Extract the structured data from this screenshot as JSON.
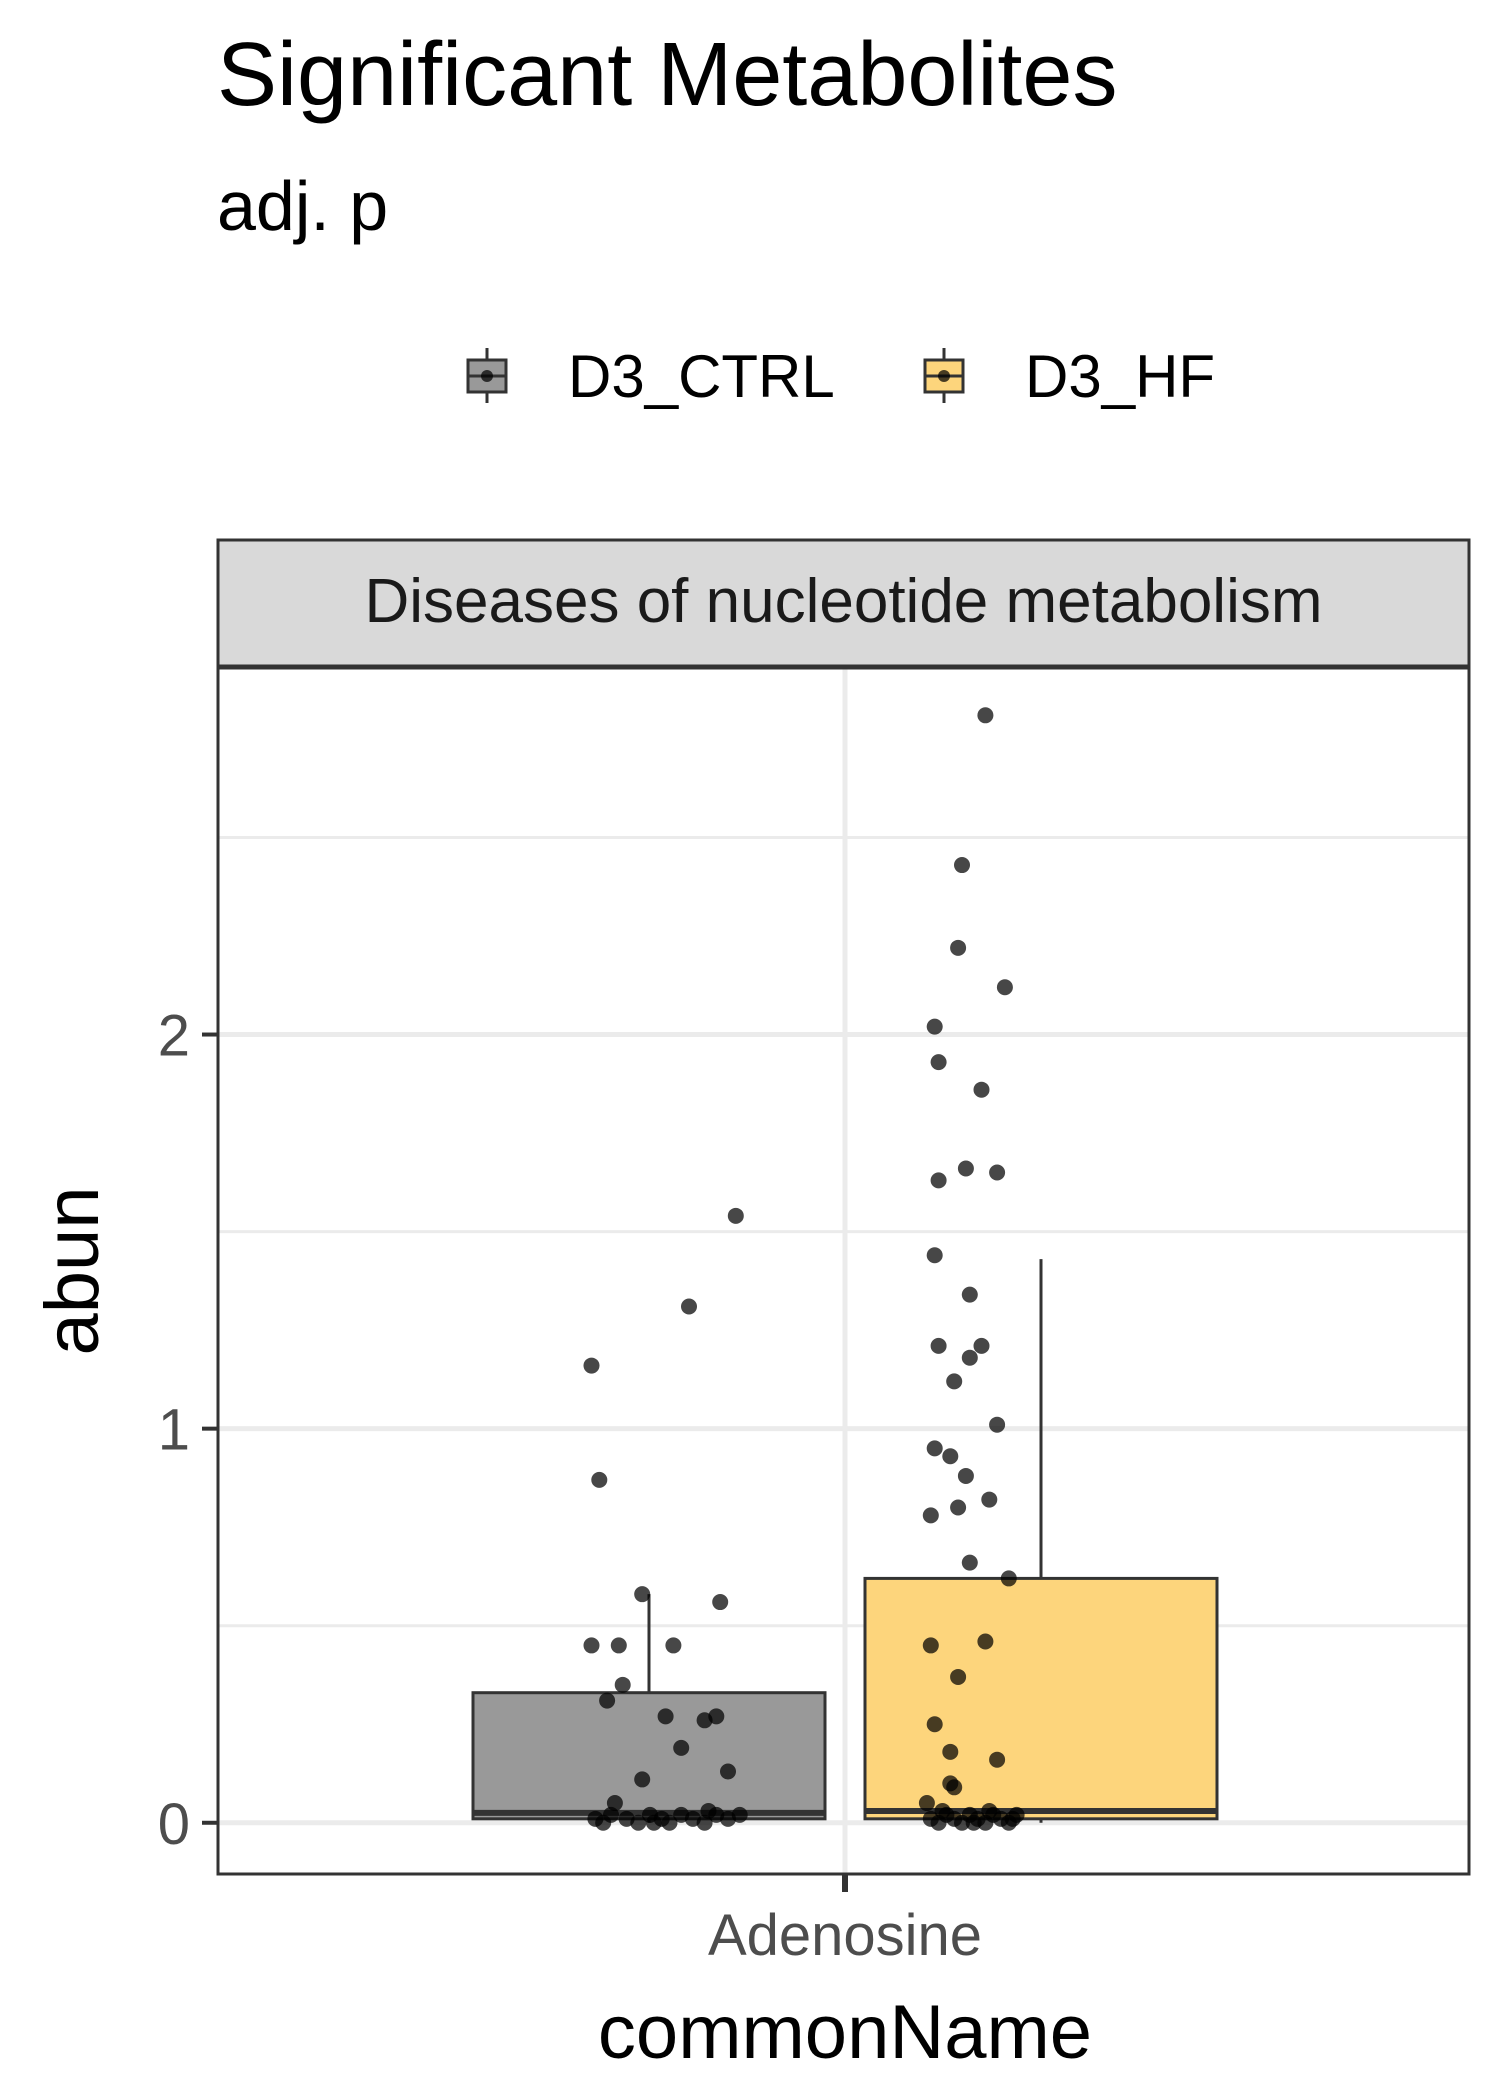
{
  "title": "Significant Metabolites",
  "subtitle": "adj. p",
  "chart_data": {
    "type": "box",
    "title": "Significant Metabolites",
    "subtitle": "adj. p",
    "facet": "Diseases of nucleotide metabolism",
    "xlabel": "commonName",
    "ylabel": "abun",
    "categories": [
      "Adenosine"
    ],
    "yticks": [
      0,
      1,
      2
    ],
    "ylim": [
      -0.13,
      2.93
    ],
    "grid": true,
    "legend_position": "top",
    "series": [
      {
        "name": "D3_CTRL",
        "color": "#999999",
        "box": {
          "q1": 0.01,
          "median": 0.025,
          "q3": 0.33,
          "whisker_low": 0.0,
          "whisker_high": 0.58
        },
        "points": [
          {
            "x": -0.28,
            "y": 1.54
          },
          {
            "x": -0.4,
            "y": 1.31
          },
          {
            "x": -0.65,
            "y": 1.16
          },
          {
            "x": -0.63,
            "y": 0.87
          },
          {
            "x": -0.52,
            "y": 0.58
          },
          {
            "x": -0.32,
            "y": 0.56
          },
          {
            "x": -0.65,
            "y": 0.45
          },
          {
            "x": -0.58,
            "y": 0.45
          },
          {
            "x": -0.44,
            "y": 0.45
          },
          {
            "x": -0.57,
            "y": 0.35
          },
          {
            "x": -0.61,
            "y": 0.31
          },
          {
            "x": -0.46,
            "y": 0.27
          },
          {
            "x": -0.33,
            "y": 0.27
          },
          {
            "x": -0.36,
            "y": 0.26
          },
          {
            "x": -0.42,
            "y": 0.19
          },
          {
            "x": -0.3,
            "y": 0.13
          },
          {
            "x": -0.52,
            "y": 0.11
          },
          {
            "x": -0.59,
            "y": 0.05
          },
          {
            "x": -0.64,
            "y": 0.01
          },
          {
            "x": -0.6,
            "y": 0.02
          },
          {
            "x": -0.56,
            "y": 0.01
          },
          {
            "x": -0.53,
            "y": 0.0
          },
          {
            "x": -0.5,
            "y": 0.02
          },
          {
            "x": -0.47,
            "y": 0.01
          },
          {
            "x": -0.45,
            "y": 0.0
          },
          {
            "x": -0.42,
            "y": 0.02
          },
          {
            "x": -0.39,
            "y": 0.01
          },
          {
            "x": -0.36,
            "y": 0.0
          },
          {
            "x": -0.33,
            "y": 0.02
          },
          {
            "x": -0.3,
            "y": 0.01
          },
          {
            "x": -0.27,
            "y": 0.02
          },
          {
            "x": -0.62,
            "y": 0.0
          },
          {
            "x": -0.49,
            "y": 0.0
          },
          {
            "x": -0.35,
            "y": 0.03
          }
        ]
      },
      {
        "name": "D3_HF",
        "color": "#FDD57C",
        "box": {
          "q1": 0.01,
          "median": 0.03,
          "q3": 0.62,
          "whisker_low": 0.0,
          "whisker_high": 1.43
        },
        "points": [
          {
            "x": 0.36,
            "y": 2.81
          },
          {
            "x": 0.3,
            "y": 2.43
          },
          {
            "x": 0.29,
            "y": 2.22
          },
          {
            "x": 0.41,
            "y": 2.12
          },
          {
            "x": 0.23,
            "y": 2.02
          },
          {
            "x": 0.24,
            "y": 1.93
          },
          {
            "x": 0.35,
            "y": 1.86
          },
          {
            "x": 0.31,
            "y": 1.66
          },
          {
            "x": 0.39,
            "y": 1.65
          },
          {
            "x": 0.24,
            "y": 1.63
          },
          {
            "x": 0.23,
            "y": 1.44
          },
          {
            "x": 0.32,
            "y": 1.34
          },
          {
            "x": 0.24,
            "y": 1.21
          },
          {
            "x": 0.35,
            "y": 1.21
          },
          {
            "x": 0.32,
            "y": 1.18
          },
          {
            "x": 0.28,
            "y": 1.12
          },
          {
            "x": 0.39,
            "y": 1.01
          },
          {
            "x": 0.23,
            "y": 0.95
          },
          {
            "x": 0.27,
            "y": 0.93
          },
          {
            "x": 0.31,
            "y": 0.88
          },
          {
            "x": 0.37,
            "y": 0.82
          },
          {
            "x": 0.29,
            "y": 0.8
          },
          {
            "x": 0.22,
            "y": 0.78
          },
          {
            "x": 0.32,
            "y": 0.66
          },
          {
            "x": 0.42,
            "y": 0.62
          },
          {
            "x": 0.22,
            "y": 0.45
          },
          {
            "x": 0.36,
            "y": 0.46
          },
          {
            "x": 0.29,
            "y": 0.37
          },
          {
            "x": 0.23,
            "y": 0.25
          },
          {
            "x": 0.27,
            "y": 0.18
          },
          {
            "x": 0.39,
            "y": 0.16
          },
          {
            "x": 0.27,
            "y": 0.1
          },
          {
            "x": 0.28,
            "y": 0.09
          },
          {
            "x": 0.21,
            "y": 0.05
          },
          {
            "x": 0.22,
            "y": 0.01
          },
          {
            "x": 0.24,
            "y": 0.0
          },
          {
            "x": 0.26,
            "y": 0.02
          },
          {
            "x": 0.28,
            "y": 0.01
          },
          {
            "x": 0.3,
            "y": 0.0
          },
          {
            "x": 0.32,
            "y": 0.02
          },
          {
            "x": 0.34,
            "y": 0.01
          },
          {
            "x": 0.36,
            "y": 0.0
          },
          {
            "x": 0.38,
            "y": 0.02
          },
          {
            "x": 0.4,
            "y": 0.01
          },
          {
            "x": 0.42,
            "y": 0.0
          },
          {
            "x": 0.44,
            "y": 0.02
          },
          {
            "x": 0.25,
            "y": 0.03
          },
          {
            "x": 0.33,
            "y": 0.0
          },
          {
            "x": 0.37,
            "y": 0.03
          },
          {
            "x": 0.43,
            "y": 0.01
          }
        ]
      }
    ]
  }
}
